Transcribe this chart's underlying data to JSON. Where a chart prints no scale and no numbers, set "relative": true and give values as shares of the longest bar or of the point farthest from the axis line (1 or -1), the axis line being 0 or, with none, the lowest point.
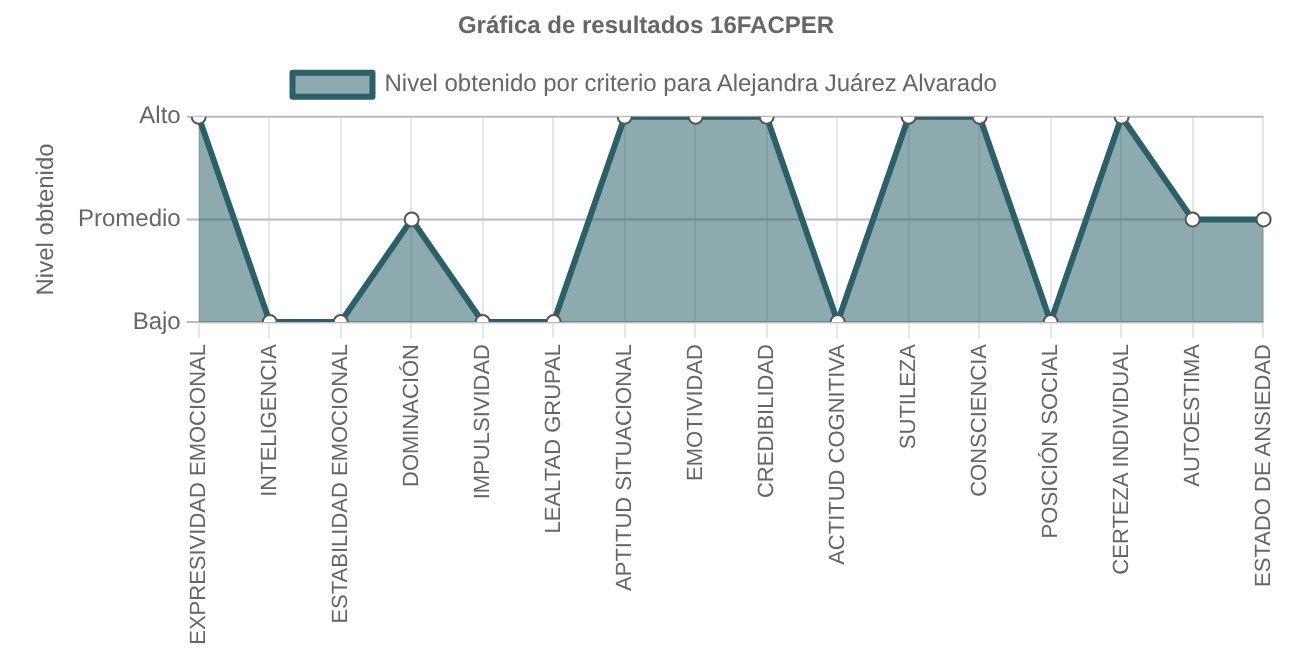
{
  "chart_data": {
    "type": "area",
    "title": "Gráfica de resultados 16FACPER",
    "annotations": [
      "Nivel obtenido"
    ],
    "categories": [
      "EXPRESIVIDAD EMOCIONAL",
      "INTELIGENCIA",
      "ESTABILIDAD EMOCIONAL",
      "DOMINACIÓN",
      "IMPULSIVIDAD",
      "LEALTAD GRUPAL",
      "APTITUD SITUACIONAL",
      "EMOTIVIDAD",
      "CREDIBILIDAD",
      "ACTITUD COGNITIVA",
      "SUTILEZA",
      "CONSCIENCIA",
      "POSICIÓN SOCIAL",
      "CERTEZA INDIVIDUAL",
      "AUTOESTIMA",
      "ESTADO DE ANSIEDAD"
    ],
    "series": [
      {
        "name": "Nivel obtenido por criterio para Alejandra Juárez Alvarado",
        "color": "#2a6068",
        "values": [
          1,
          0,
          0,
          0.5,
          0,
          0,
          1,
          1,
          1,
          0,
          1,
          1,
          0,
          1,
          0.5,
          0.5
        ]
      }
    ],
    "relative": true,
    "ref_lines": [
      {
        "axis": "y",
        "value": 0,
        "label": "Bajo",
        "color": "#bbbbbb"
      },
      {
        "axis": "y",
        "value": 0.5,
        "label": "Promedio",
        "color": "#bbbbbb"
      },
      {
        "axis": "y",
        "value": 1,
        "label": "Alto",
        "color": "#bbbbbb"
      }
    ],
    "grid": "x",
    "legend": "top",
    "marker": "circle"
  }
}
